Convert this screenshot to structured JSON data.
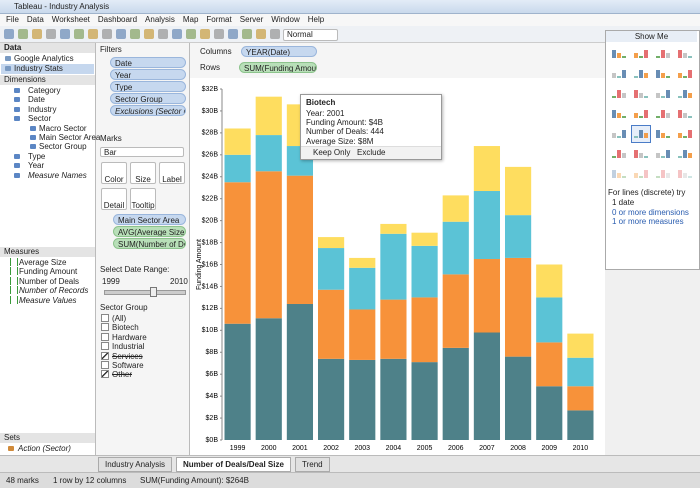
{
  "window": {
    "title": "Tableau - Industry Analysis"
  },
  "menu": [
    "File",
    "Data",
    "Worksheet",
    "Dashboard",
    "Analysis",
    "Map",
    "Format",
    "Server",
    "Window",
    "Help"
  ],
  "toolbar": {
    "mode": "Normal"
  },
  "data_pane": {
    "header": "Data",
    "sources": [
      "Google Analytics",
      "Industry Stats"
    ],
    "dimensions_header": "Dimensions",
    "dimensions": [
      {
        "name": "Category"
      },
      {
        "name": "Date"
      },
      {
        "name": "Industry"
      },
      {
        "name": "Sector",
        "children": [
          "Macro Sector",
          "Main Sector Area",
          "Sector Group"
        ]
      },
      {
        "name": "Type"
      },
      {
        "name": "Year"
      },
      {
        "name": "Measure Names",
        "italic": true
      }
    ],
    "measures_header": "Measures",
    "measures": [
      {
        "name": "Average Size"
      },
      {
        "name": "Funding Amount"
      },
      {
        "name": "Number of Deals"
      },
      {
        "name": "Number of Records",
        "italic": true
      },
      {
        "name": "Measure Values",
        "italic": true
      }
    ],
    "sets_header": "Sets",
    "sets": [
      "Action (Sector)"
    ]
  },
  "filters": {
    "header": "Filters",
    "items": [
      "Date",
      "Year",
      "Type",
      "Sector Group",
      "Exclusions (Sector (gr..."
    ]
  },
  "marks": {
    "header": "Marks",
    "mark_type": "Bar",
    "buttons": [
      "Color",
      "Size",
      "Label",
      "Detail",
      "Tooltip"
    ],
    "fields": [
      {
        "name": "Main Sector Area",
        "kind": "dimension"
      },
      {
        "name": "AVG(Average Size)",
        "kind": "measure"
      },
      {
        "name": "SUM(Number of De...",
        "kind": "measure"
      }
    ]
  },
  "date_range": {
    "label": "Select Date Range:",
    "min": "1999",
    "max": "2010"
  },
  "sector_group": {
    "header": "Sector Group",
    "options": [
      {
        "label": "(All)",
        "checked": false
      },
      {
        "label": "Biotech",
        "checked": false
      },
      {
        "label": "Hardware",
        "checked": false
      },
      {
        "label": "Industrial",
        "checked": false
      },
      {
        "label": "Services",
        "checked": true
      },
      {
        "label": "Software",
        "checked": false
      },
      {
        "label": "Other",
        "checked": true
      }
    ]
  },
  "shelves": {
    "columns_label": "Columns",
    "columns": "YEAR(Date)",
    "rows_label": "Rows",
    "rows": "SUM(Funding Amount)"
  },
  "tooltip": {
    "title": "Biotech",
    "lines": [
      "Year: 2001",
      "Funding Amount: $4B",
      "Number of Deals: 444",
      "Average Size: $8M"
    ],
    "keep": "Keep Only",
    "exclude": "Exclude"
  },
  "show_me": {
    "header": "Show Me",
    "hint": "For lines (discrete) try",
    "requirements": [
      "1 date",
      "0 or more dimensions",
      "1 or more measures"
    ]
  },
  "tabs": [
    {
      "label": "Industry Analysis",
      "active": false
    },
    {
      "label": "Number of Deals/Deal Size",
      "active": true
    },
    {
      "label": "Trend",
      "active": false
    }
  ],
  "status": [
    "48 marks",
    "1 row by 12 columns",
    "SUM(Funding Amount): $264B"
  ],
  "chart_data": {
    "type": "stacked_bar",
    "ylabel": "Funding Amount",
    "categories": [
      "1999",
      "2000",
      "2001",
      "2002",
      "2003",
      "2004",
      "2005",
      "2006",
      "2007",
      "2008",
      "2009",
      "2010"
    ],
    "series": [
      {
        "color": "#4e8189",
        "values": [
          10.6,
          11.1,
          12.4,
          7.4,
          7.3,
          7.4,
          7.1,
          8.4,
          9.8,
          7.6,
          4.9,
          2.7
        ]
      },
      {
        "color": "#f7923a",
        "values": [
          12.9,
          13.4,
          11.7,
          6.3,
          4.6,
          5.4,
          5.9,
          6.7,
          6.7,
          9.0,
          4.0,
          2.2
        ]
      },
      {
        "color": "#5bc3d6",
        "values": [
          2.5,
          3.3,
          2.7,
          3.8,
          3.8,
          6.0,
          4.7,
          4.8,
          6.2,
          3.9,
          4.1,
          2.6
        ]
      },
      {
        "color": "#fedd5f",
        "values": [
          2.4,
          3.5,
          3.8,
          1.0,
          0.9,
          0.9,
          1.2,
          2.4,
          4.1,
          4.4,
          3.0,
          2.2
        ]
      }
    ],
    "ylim": [
      0,
      32
    ],
    "yticks": [
      {
        "value": 0,
        "label": "$0B"
      },
      {
        "value": 2,
        "label": "$2B"
      },
      {
        "value": 4,
        "label": "$4B"
      },
      {
        "value": 6,
        "label": "$6B"
      },
      {
        "value": 8,
        "label": "$8B"
      },
      {
        "value": 10,
        "label": "$10B"
      },
      {
        "value": 12,
        "label": "$12B"
      },
      {
        "value": 14,
        "label": "$14B"
      },
      {
        "value": 16,
        "label": "$16B"
      },
      {
        "value": 18,
        "label": "$18B"
      },
      {
        "value": 20,
        "label": "$20B"
      },
      {
        "value": 22,
        "label": "$22B"
      },
      {
        "value": 24,
        "label": "$24B"
      },
      {
        "value": 26,
        "label": "$26B"
      },
      {
        "value": 28,
        "label": "$28B"
      },
      {
        "value": 30,
        "label": "$30B"
      },
      {
        "value": 32,
        "label": "$32B"
      }
    ],
    "grid": false
  }
}
